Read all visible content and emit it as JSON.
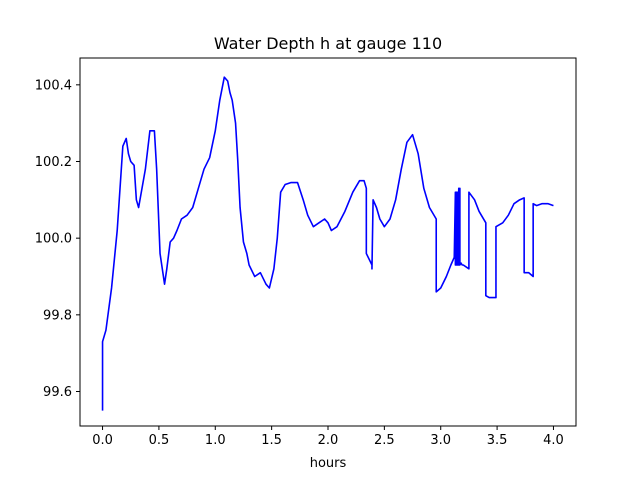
{
  "chart_data": {
    "type": "line",
    "title": "Water Depth h at gauge 110",
    "xlabel": "hours",
    "ylabel": "",
    "xlim": [
      -0.2,
      4.2
    ],
    "ylim": [
      99.51,
      100.47
    ],
    "xticks": [
      0.0,
      0.5,
      1.0,
      1.5,
      2.0,
      2.5,
      3.0,
      3.5,
      4.0
    ],
    "xtick_labels": [
      "0.0",
      "0.5",
      "1.0",
      "1.5",
      "2.0",
      "2.5",
      "3.0",
      "3.5",
      "4.0"
    ],
    "yticks": [
      99.6,
      99.8,
      100.0,
      100.2,
      100.4
    ],
    "ytick_labels": [
      "99.6",
      "99.8",
      "100.0",
      "100.2",
      "100.4"
    ],
    "grid": false,
    "series": [
      {
        "color": "#0000ff",
        "x": [
          0.0,
          0.0,
          0.03,
          0.08,
          0.13,
          0.18,
          0.21,
          0.23,
          0.25,
          0.28,
          0.3,
          0.32,
          0.38,
          0.42,
          0.46,
          0.48,
          0.51,
          0.55,
          0.57,
          0.6,
          0.63,
          0.66,
          0.7,
          0.75,
          0.8,
          0.85,
          0.9,
          0.95,
          1.0,
          1.04,
          1.08,
          1.11,
          1.13,
          1.15,
          1.18,
          1.2,
          1.22,
          1.25,
          1.28,
          1.3,
          1.35,
          1.4,
          1.45,
          1.48,
          1.52,
          1.55,
          1.58,
          1.62,
          1.67,
          1.73,
          1.78,
          1.82,
          1.87,
          1.92,
          1.97,
          2.0,
          2.03,
          2.08,
          2.15,
          2.22,
          2.28,
          2.32,
          2.34,
          2.34,
          2.39,
          2.39,
          2.4,
          2.43,
          2.46,
          2.5,
          2.55,
          2.6,
          2.65,
          2.7,
          2.75,
          2.8,
          2.85,
          2.9,
          2.96,
          2.96,
          3.0,
          3.05,
          3.09,
          3.12,
          3.13,
          3.13,
          3.14,
          3.14,
          3.15,
          3.15,
          3.16,
          3.16,
          3.17,
          3.17,
          3.18,
          3.18,
          3.19,
          3.2,
          3.25,
          3.25,
          3.3,
          3.34,
          3.36,
          3.4,
          3.4,
          3.43,
          3.49,
          3.49,
          3.55,
          3.6,
          3.65,
          3.7,
          3.74,
          3.74,
          3.78,
          3.82,
          3.82,
          3.85,
          3.9,
          3.95,
          4.0
        ],
        "y": [
          99.55,
          99.73,
          99.76,
          99.87,
          100.02,
          100.24,
          100.26,
          100.22,
          100.2,
          100.19,
          100.1,
          100.08,
          100.18,
          100.28,
          100.28,
          100.18,
          99.96,
          99.88,
          99.92,
          99.99,
          100.0,
          100.02,
          100.05,
          100.06,
          100.08,
          100.13,
          100.18,
          100.21,
          100.28,
          100.36,
          100.42,
          100.41,
          100.38,
          100.36,
          100.3,
          100.2,
          100.08,
          99.99,
          99.96,
          99.93,
          99.9,
          99.91,
          99.88,
          99.87,
          99.92,
          100.0,
          100.12,
          100.14,
          100.145,
          100.145,
          100.1,
          100.06,
          100.03,
          100.04,
          100.05,
          100.04,
          100.02,
          100.03,
          100.07,
          100.12,
          100.15,
          100.15,
          100.13,
          99.96,
          99.93,
          99.92,
          100.1,
          100.08,
          100.05,
          100.03,
          100.05,
          100.1,
          100.18,
          100.25,
          100.27,
          100.22,
          100.13,
          100.08,
          100.05,
          99.86,
          99.87,
          99.9,
          99.93,
          99.95,
          100.12,
          99.93,
          100.12,
          99.93,
          100.12,
          99.93,
          100.13,
          99.93,
          100.13,
          99.93,
          99.935,
          99.935,
          99.93,
          99.93,
          99.92,
          100.12,
          100.1,
          100.07,
          100.06,
          100.04,
          99.85,
          99.845,
          99.845,
          100.03,
          100.04,
          100.06,
          100.09,
          100.1,
          100.105,
          99.91,
          99.91,
          99.9,
          100.09,
          100.085,
          100.09,
          100.09,
          100.085
        ]
      }
    ]
  }
}
